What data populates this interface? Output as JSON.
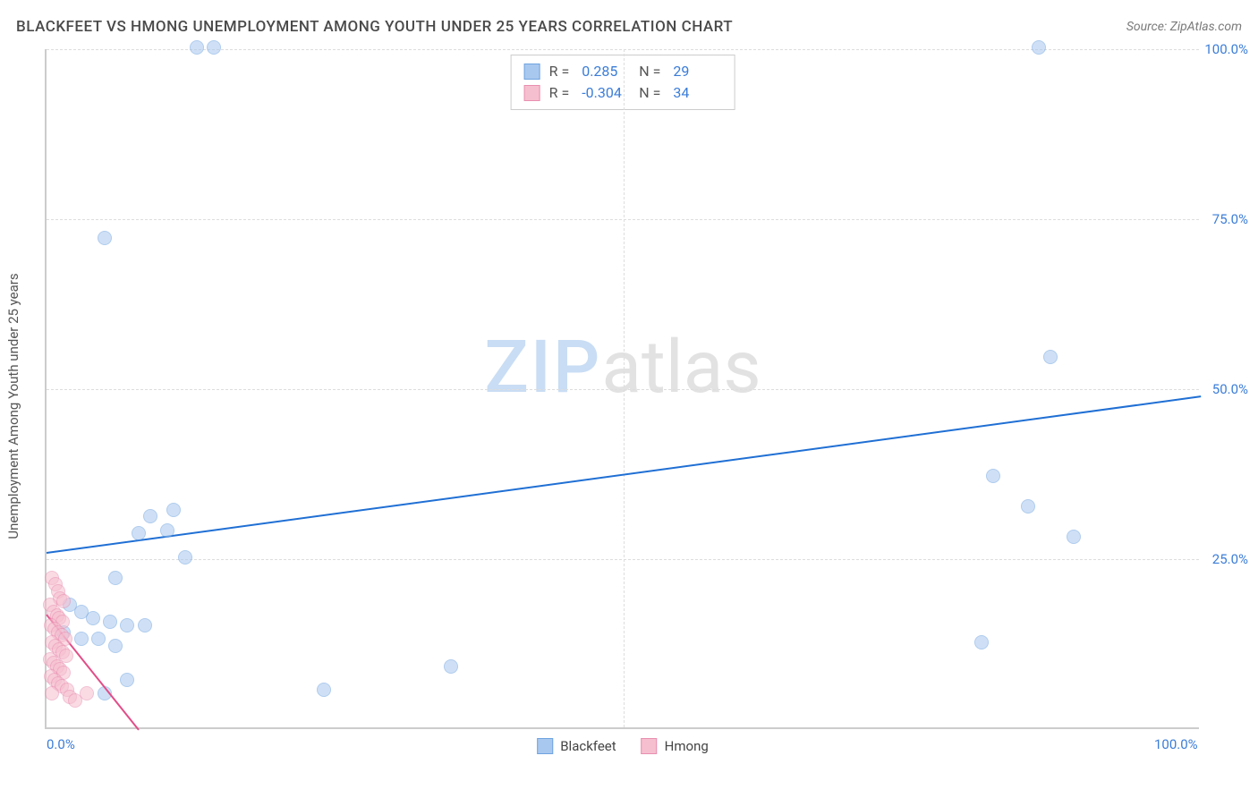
{
  "header": {
    "title": "BLACKFEET VS HMONG UNEMPLOYMENT AMONG YOUTH UNDER 25 YEARS CORRELATION CHART",
    "source_prefix": "Source: ",
    "source_name": "ZipAtlas.com"
  },
  "chart": {
    "type": "scatter",
    "y_axis_label": "Unemployment Among Youth under 25 years",
    "xlim": [
      0,
      100
    ],
    "ylim": [
      0,
      100
    ],
    "x_ticks": [
      {
        "v": 0,
        "label": "0.0%"
      },
      {
        "v": 100,
        "label": "100.0%"
      }
    ],
    "y_ticks": [
      {
        "v": 25,
        "label": "25.0%"
      },
      {
        "v": 50,
        "label": "50.0%"
      },
      {
        "v": 75,
        "label": "75.0%"
      },
      {
        "v": 100,
        "label": "100.0%"
      }
    ],
    "x_gridlines": [
      50
    ],
    "background_color": "#ffffff",
    "grid_color": "#dddddd",
    "axis_color": "#cccccc",
    "tick_label_color": "#3b7dd8",
    "axis_label_color": "#555555",
    "axis_label_fontsize": 15,
    "tick_label_fontsize": 15,
    "point_radius": 8,
    "point_opacity": 0.55,
    "watermark": {
      "part1": "ZIP",
      "part2": "atlas",
      "color1": "#c9ddf4",
      "color2": "#e2e2e2",
      "fontsize": 82
    },
    "series": [
      {
        "name": "Blackfeet",
        "color_fill": "#a9c8ef",
        "color_stroke": "#6fa3e0",
        "r_label": "R =",
        "r_value": "0.285",
        "n_label": "N =",
        "n_value": "29",
        "trend": {
          "x1": 0,
          "y1": 26,
          "x2": 100,
          "y2": 49,
          "color": "#1f6fd4",
          "width": 2
        },
        "points": [
          {
            "x": 13,
            "y": 100
          },
          {
            "x": 14.5,
            "y": 100
          },
          {
            "x": 86,
            "y": 100
          },
          {
            "x": 5,
            "y": 72
          },
          {
            "x": 87,
            "y": 54.5
          },
          {
            "x": 82,
            "y": 37
          },
          {
            "x": 85,
            "y": 32.5
          },
          {
            "x": 89,
            "y": 28
          },
          {
            "x": 9,
            "y": 31
          },
          {
            "x": 11,
            "y": 32
          },
          {
            "x": 8,
            "y": 28.5
          },
          {
            "x": 10.5,
            "y": 29
          },
          {
            "x": 12,
            "y": 25
          },
          {
            "x": 6,
            "y": 22
          },
          {
            "x": 2,
            "y": 18
          },
          {
            "x": 3,
            "y": 17
          },
          {
            "x": 4,
            "y": 16
          },
          {
            "x": 5.5,
            "y": 15.5
          },
          {
            "x": 7,
            "y": 15
          },
          {
            "x": 8.5,
            "y": 15
          },
          {
            "x": 1.5,
            "y": 14
          },
          {
            "x": 3,
            "y": 13
          },
          {
            "x": 4.5,
            "y": 13
          },
          {
            "x": 6,
            "y": 12
          },
          {
            "x": 81,
            "y": 12.5
          },
          {
            "x": 35,
            "y": 9
          },
          {
            "x": 24,
            "y": 5.5
          },
          {
            "x": 5,
            "y": 5
          },
          {
            "x": 7,
            "y": 7
          }
        ]
      },
      {
        "name": "Hmong",
        "color_fill": "#f6bfcf",
        "color_stroke": "#e88fb0",
        "r_label": "R =",
        "r_value": "-0.304",
        "n_label": "N =",
        "n_value": "34",
        "trend": {
          "x1": 0,
          "y1": 17,
          "x2": 8,
          "y2": 0,
          "color": "#e24d88",
          "width": 2
        },
        "points": [
          {
            "x": 0.5,
            "y": 22
          },
          {
            "x": 0.8,
            "y": 21
          },
          {
            "x": 1,
            "y": 20
          },
          {
            "x": 1.2,
            "y": 19
          },
          {
            "x": 1.5,
            "y": 18.5
          },
          {
            "x": 0.3,
            "y": 18
          },
          {
            "x": 0.6,
            "y": 17
          },
          {
            "x": 0.9,
            "y": 16.5
          },
          {
            "x": 1.1,
            "y": 16
          },
          {
            "x": 1.4,
            "y": 15.5
          },
          {
            "x": 0.4,
            "y": 15
          },
          {
            "x": 0.7,
            "y": 14.5
          },
          {
            "x": 1.0,
            "y": 14
          },
          {
            "x": 1.3,
            "y": 13.5
          },
          {
            "x": 1.6,
            "y": 13
          },
          {
            "x": 0.5,
            "y": 12.5
          },
          {
            "x": 0.8,
            "y": 12
          },
          {
            "x": 1.1,
            "y": 11.5
          },
          {
            "x": 1.4,
            "y": 11
          },
          {
            "x": 1.7,
            "y": 10.5
          },
          {
            "x": 0.3,
            "y": 10
          },
          {
            "x": 0.6,
            "y": 9.5
          },
          {
            "x": 0.9,
            "y": 9
          },
          {
            "x": 1.2,
            "y": 8.5
          },
          {
            "x": 1.5,
            "y": 8
          },
          {
            "x": 0.4,
            "y": 7.5
          },
          {
            "x": 0.7,
            "y": 7
          },
          {
            "x": 1.0,
            "y": 6.5
          },
          {
            "x": 1.3,
            "y": 6
          },
          {
            "x": 1.8,
            "y": 5.5
          },
          {
            "x": 0.5,
            "y": 5
          },
          {
            "x": 2.0,
            "y": 4.5
          },
          {
            "x": 2.5,
            "y": 4
          },
          {
            "x": 3.5,
            "y": 5
          }
        ]
      }
    ]
  },
  "legend": {
    "items": [
      {
        "label": "Blackfeet",
        "fill": "#a9c8ef",
        "stroke": "#6fa3e0"
      },
      {
        "label": "Hmong",
        "fill": "#f6bfcf",
        "stroke": "#e88fb0"
      }
    ]
  }
}
